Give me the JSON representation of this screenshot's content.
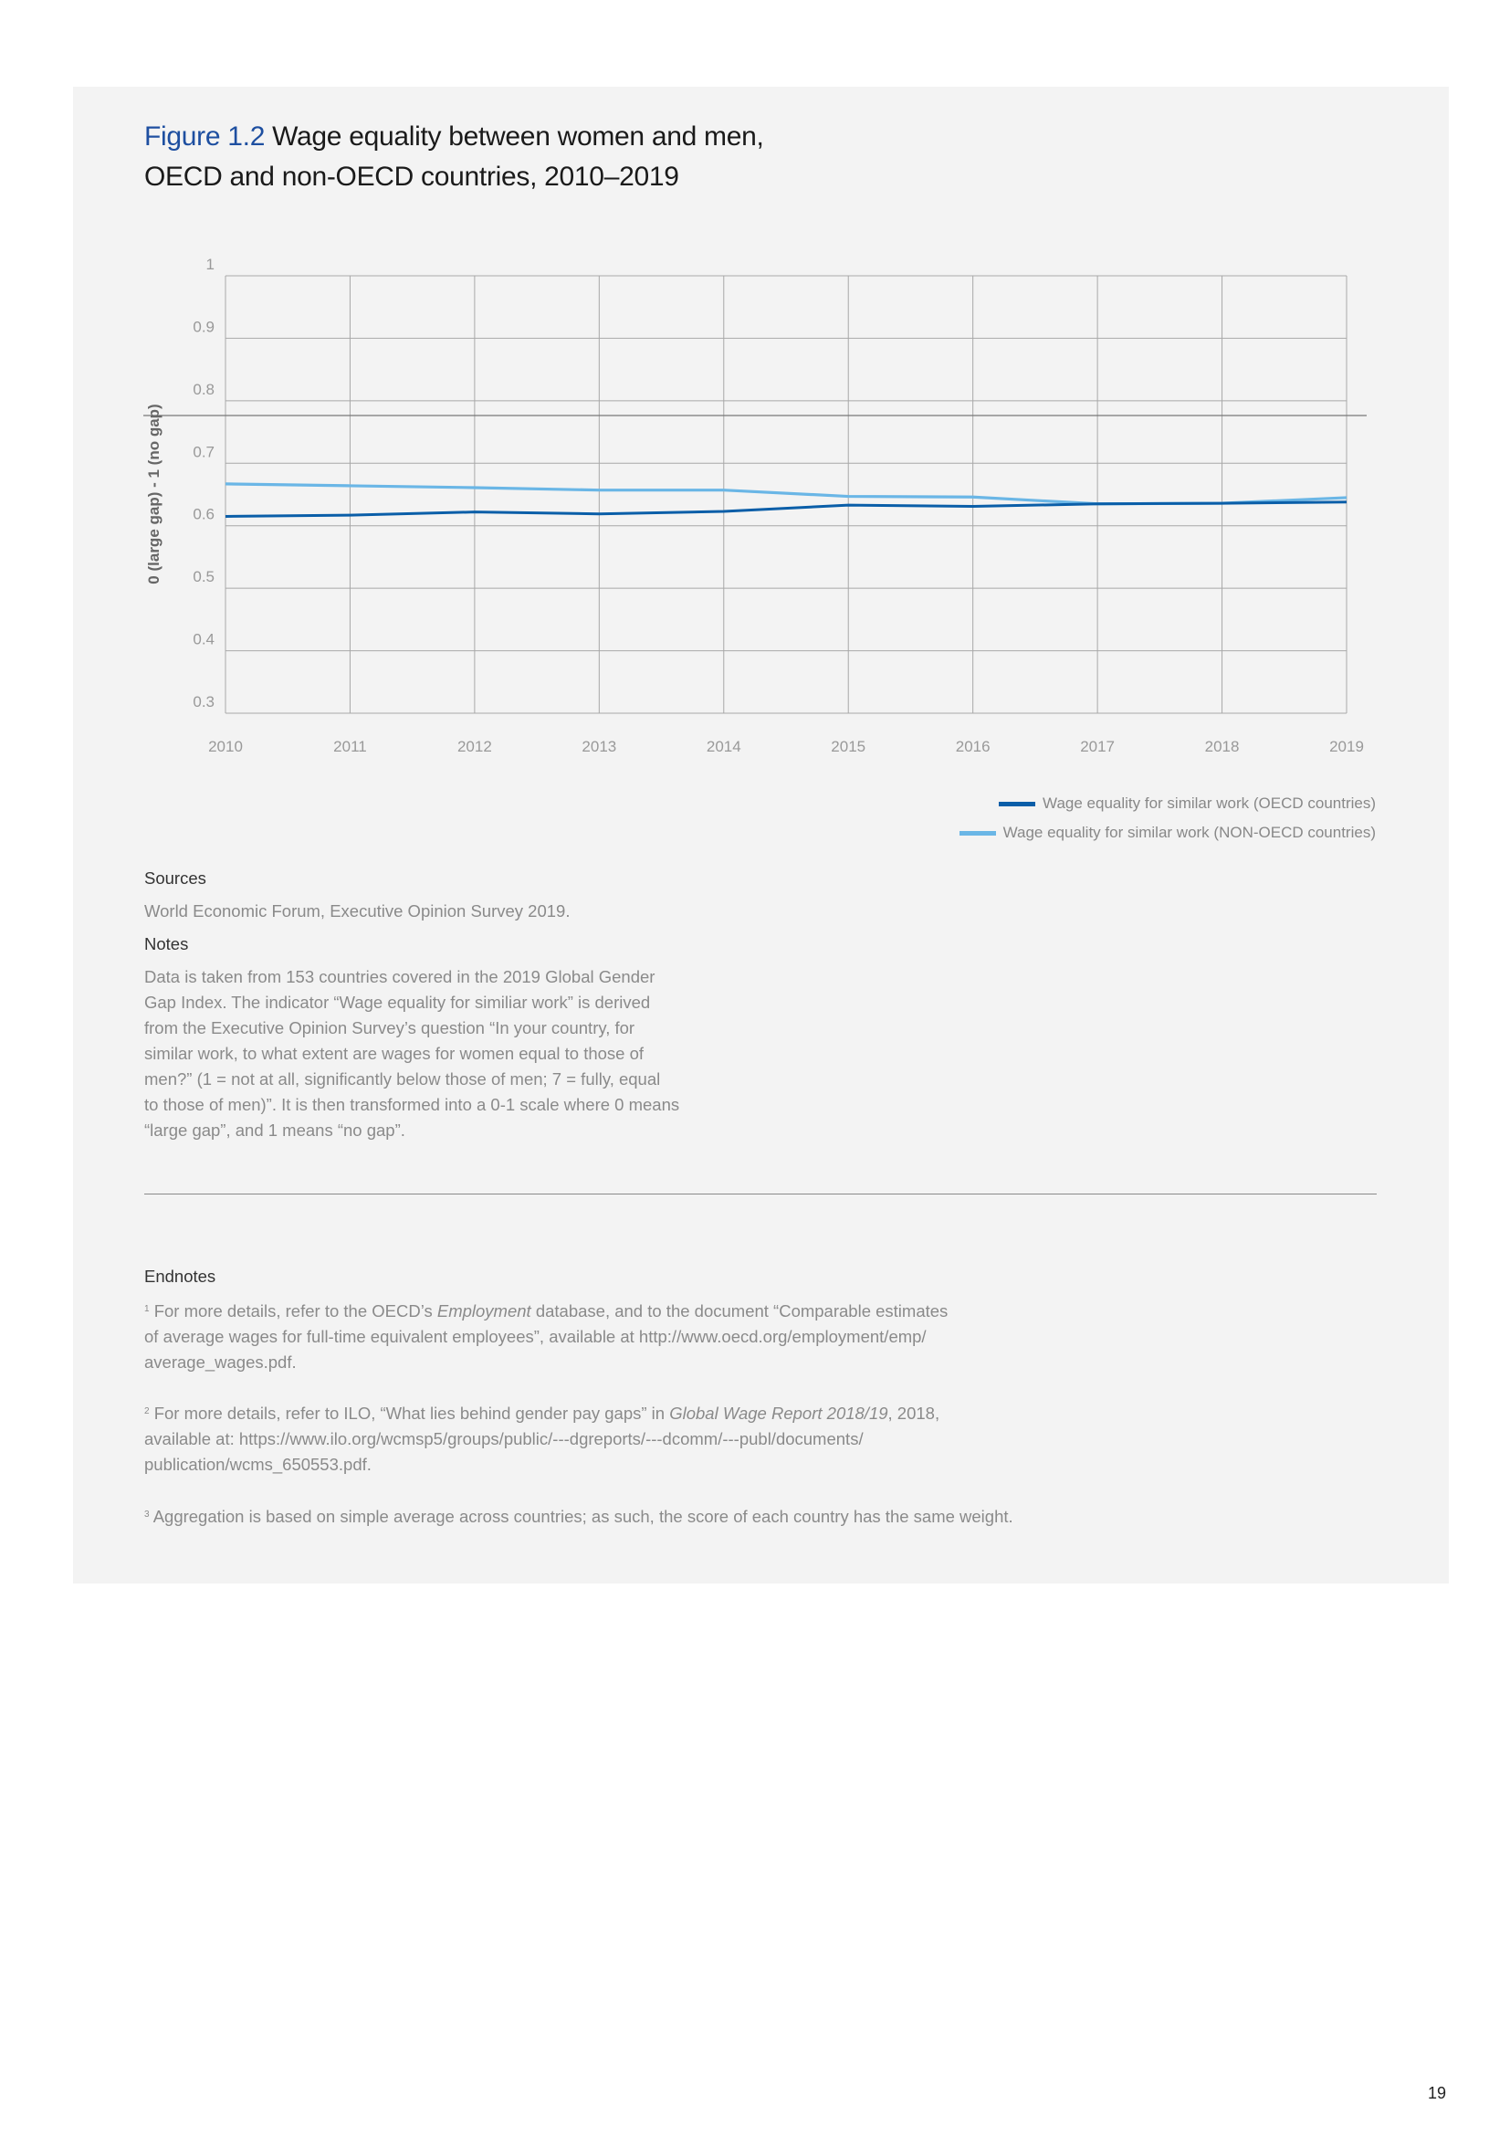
{
  "figure": {
    "label": "Figure 1.2",
    "title_line1": "Wage equality between women and men,",
    "title_line2": "OECD and non-OECD countries, 2010–2019"
  },
  "chart_data": {
    "type": "line",
    "title": "",
    "xlabel": "",
    "ylabel": "0 (large gap) - 1 (no gap)",
    "x": [
      2010,
      2011,
      2012,
      2013,
      2014,
      2015,
      2016,
      2017,
      2018,
      2019
    ],
    "ylim": [
      0.3,
      1
    ],
    "yticks": [
      "0.3",
      "0.4",
      "0.5",
      "0.6",
      "0.7",
      "0.8",
      "0.9",
      "1"
    ],
    "grid": true,
    "legend_position": "bottom-right",
    "series": [
      {
        "name": "Wage equality for similar work (OECD countries)",
        "color": "#0a5ea8",
        "values": [
          0.615,
          0.617,
          0.622,
          0.619,
          0.623,
          0.633,
          0.631,
          0.635,
          0.636,
          0.638
        ]
      },
      {
        "name": "Wage equality for similar work (NON-OECD countries)",
        "color": "#6ab6e6",
        "values": [
          0.667,
          0.664,
          0.661,
          0.657,
          0.657,
          0.647,
          0.646,
          0.635,
          0.636,
          0.645
        ]
      }
    ]
  },
  "sources": {
    "heading": "Sources",
    "text": "World Economic Forum, Executive Opinion Survey 2019."
  },
  "notes": {
    "heading": "Notes",
    "lines": [
      "Data is taken from 153 countries covered in the 2019 Global Gender",
      "Gap Index. The indicator “Wage equality for similiar work” is derived",
      "from the Executive Opinion Survey’s question “In your country, for",
      "similar work, to what extent are wages for women equal to those of",
      "men?” (1 = not at all, significantly below those of men; 7 = fully, equal",
      "to those of men)”. It is then transformed into a 0-1 scale where 0 means",
      "“large gap”, and 1 means “no gap”."
    ]
  },
  "endnotes": {
    "heading": "Endnotes",
    "items": [
      {
        "num": "1",
        "l1a": "For more details, refer to the OECD’s ",
        "l1i": "Employment",
        "l1b": " database, and to the document “Comparable estimates",
        "l2": "of average wages for full-time equivalent employees”, available at http://www.oecd.org/employment/emp/",
        "l3": "average_wages.pdf."
      },
      {
        "num": "2",
        "l1a": "For more details, refer to ILO, “What lies behind gender pay gaps” in ",
        "l1i": "Global Wage Report 2018/19",
        "l1b": ", 2018,",
        "l2": "available at: https://www.ilo.org/wcmsp5/groups/public/---dgreports/---dcomm/---publ/documents/",
        "l3": "publication/wcms_650553.pdf."
      },
      {
        "num": "3",
        "l1a": "Aggregation is based on simple average across countries; as such, the score of each country has the same weight.",
        "l1i": "",
        "l1b": "",
        "l2": "",
        "l3": ""
      }
    ]
  },
  "page_number": "19"
}
